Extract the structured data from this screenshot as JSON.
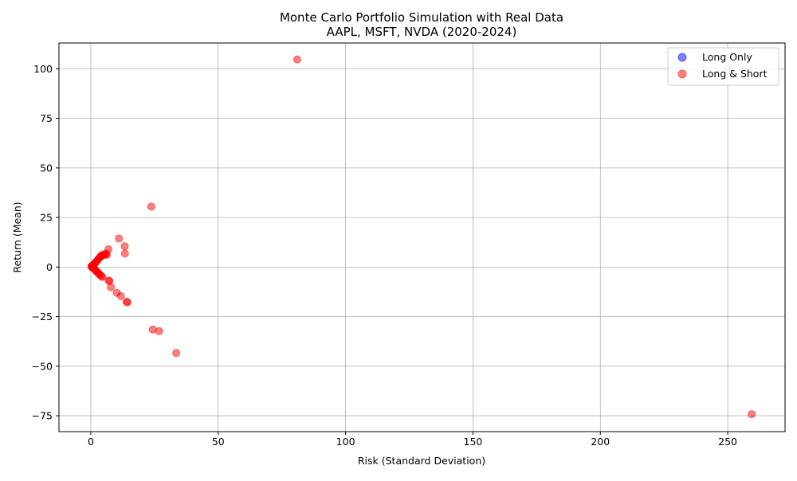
{
  "chart_data": {
    "type": "scatter",
    "title_line1": "Monte Carlo Portfolio Simulation with Real Data",
    "title_line2": "AAPL, MSFT, NVDA (2020-2024)",
    "xlabel": "Risk (Standard Deviation)",
    "ylabel": "Return (Mean)",
    "xlim": [
      -12.5,
      272.5
    ],
    "ylim": [
      -83,
      113
    ],
    "xticks": [
      0,
      50,
      100,
      150,
      200,
      250
    ],
    "yticks": [
      -75,
      -50,
      -25,
      0,
      25,
      50,
      75,
      100
    ],
    "grid": true,
    "legend_position": "upper right",
    "colors": {
      "long_only": "#0000ff",
      "long_short": "#ff0000"
    },
    "series": [
      {
        "name": "Long Only",
        "color": "#0000ff",
        "points": [
          [
            0.5,
            0.5
          ],
          [
            0.8,
            0.9
          ],
          [
            1.0,
            1.1
          ]
        ]
      },
      {
        "name": "Long & Short",
        "color": "#ff0000",
        "points": [
          [
            0.2,
            0.3
          ],
          [
            0.4,
            0.6
          ],
          [
            0.6,
            0.2
          ],
          [
            0.5,
            -0.3
          ],
          [
            0.8,
            0.8
          ],
          [
            1.0,
            1.1
          ],
          [
            1.1,
            -0.6
          ],
          [
            1.3,
            1.5
          ],
          [
            1.4,
            -1.0
          ],
          [
            1.6,
            2.0
          ],
          [
            1.8,
            -1.5
          ],
          [
            2.0,
            2.4
          ],
          [
            2.1,
            -2.0
          ],
          [
            2.3,
            3.0
          ],
          [
            2.5,
            -2.5
          ],
          [
            2.7,
            3.6
          ],
          [
            2.9,
            -3.0
          ],
          [
            3.1,
            4.3
          ],
          [
            3.3,
            -3.6
          ],
          [
            3.5,
            4.8
          ],
          [
            3.6,
            -4.0
          ],
          [
            3.8,
            5.2
          ],
          [
            4.0,
            5.6
          ],
          [
            4.2,
            -4.6
          ],
          [
            4.3,
            5.9
          ],
          [
            4.5,
            -5.0
          ],
          [
            4.8,
            6.0
          ],
          [
            5.0,
            6.3
          ],
          [
            5.8,
            6.5
          ],
          [
            6.0,
            6.8
          ],
          [
            6.3,
            6.2
          ],
          [
            6.9,
            9.0
          ],
          [
            7.0,
            -6.8
          ],
          [
            7.3,
            -7.1
          ],
          [
            7.9,
            -10.2
          ],
          [
            10.2,
            -13.0
          ],
          [
            11.0,
            14.4
          ],
          [
            11.8,
            -14.6
          ],
          [
            13.3,
            10.5
          ],
          [
            13.4,
            6.8
          ],
          [
            14.0,
            -17.5
          ],
          [
            14.4,
            -17.8
          ],
          [
            23.7,
            30.5
          ],
          [
            24.3,
            -31.5
          ],
          [
            26.8,
            -32.3
          ],
          [
            33.5,
            -43.3
          ],
          [
            81.0,
            104.7
          ],
          [
            259.4,
            -74.2
          ]
        ]
      }
    ]
  }
}
